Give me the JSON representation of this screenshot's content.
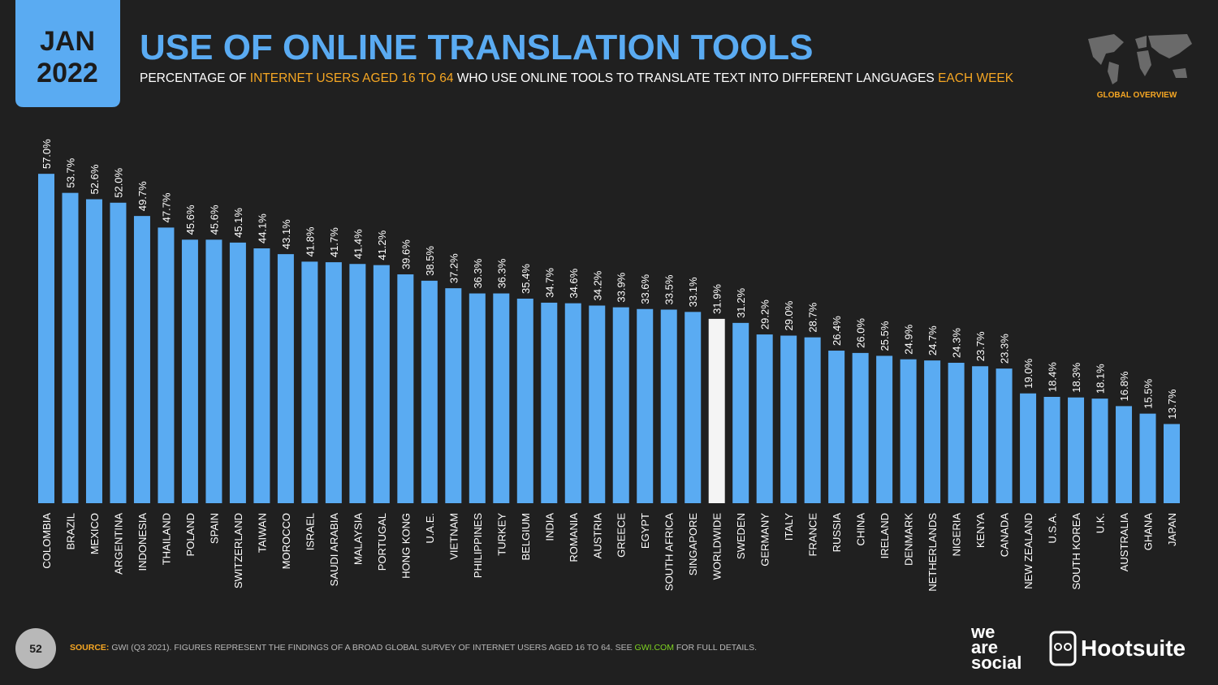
{
  "header": {
    "month": "JAN",
    "year": "2022",
    "badge": "GLOBAL OVERVIEW",
    "page_number": "52"
  },
  "chart_data": {
    "type": "bar",
    "title": "USE OF ONLINE TRANSLATION TOOLS",
    "subtitle": [
      "PERCENTAGE OF",
      "INTERNET USERS AGED 16 TO 64",
      "WHO USE ONLINE TOOLS TO TRANSLATE TEXT INTO DIFFERENT LANGUAGES",
      "EACH WEEK"
    ],
    "categories": [
      "COLOMBIA",
      "BRAZIL",
      "MEXICO",
      "ARGENTINA",
      "INDONESIA",
      "THAILAND",
      "POLAND",
      "SPAIN",
      "SWITZERLAND",
      "TAIWAN",
      "MOROCCO",
      "ISRAEL",
      "SAUDI ARABIA",
      "MALAYSIA",
      "PORTUGAL",
      "HONG KONG",
      "U.A.E.",
      "VIETNAM",
      "PHILIPPINES",
      "TURKEY",
      "BELGIUM",
      "INDIA",
      "ROMANIA",
      "AUSTRIA",
      "GREECE",
      "EGYPT",
      "SOUTH AFRICA",
      "SINGAPORE",
      "WORLDWIDE",
      "SWEDEN",
      "GERMANY",
      "ITALY",
      "FRANCE",
      "RUSSIA",
      "CHINA",
      "IRELAND",
      "DENMARK",
      "NETHERLANDS",
      "NIGERIA",
      "KENYA",
      "CANADA",
      "NEW ZEALAND",
      "U.S.A.",
      "SOUTH KOREA",
      "U.K.",
      "AUSTRALIA",
      "GHANA",
      "JAPAN"
    ],
    "values": [
      57.0,
      53.7,
      52.6,
      52.0,
      49.7,
      47.7,
      45.6,
      45.6,
      45.1,
      44.1,
      43.1,
      41.8,
      41.7,
      41.4,
      41.2,
      39.6,
      38.5,
      37.2,
      36.3,
      36.3,
      35.4,
      34.7,
      34.6,
      34.2,
      33.9,
      33.6,
      33.5,
      33.1,
      31.9,
      31.2,
      29.2,
      29.0,
      28.7,
      26.4,
      26.0,
      25.5,
      24.9,
      24.7,
      24.3,
      23.7,
      23.3,
      19.0,
      18.4,
      18.3,
      18.1,
      16.8,
      15.5,
      13.7
    ],
    "value_labels": [
      "57.0%",
      "53.7%",
      "52.6%",
      "52.0%",
      "49.7%",
      "47.7%",
      "45.6%",
      "45.6%",
      "45.1%",
      "44.1%",
      "43.1%",
      "41.8%",
      "41.7%",
      "41.4%",
      "41.2%",
      "39.6%",
      "38.5%",
      "37.2%",
      "36.3%",
      "36.3%",
      "35.4%",
      "34.7%",
      "34.6%",
      "34.2%",
      "33.9%",
      "33.6%",
      "33.5%",
      "33.1%",
      "31.9%",
      "31.2%",
      "29.2%",
      "29.0%",
      "28.7%",
      "26.4%",
      "26.0%",
      "25.5%",
      "24.9%",
      "24.7%",
      "24.3%",
      "23.7%",
      "23.3%",
      "19.0%",
      "18.4%",
      "18.3%",
      "18.1%",
      "16.8%",
      "15.5%",
      "13.7%"
    ],
    "color": "#5aabf2",
    "highlight_index": 28,
    "highlight_color": "#f4f4f4"
  },
  "footer": {
    "source": [
      "SOURCE:",
      "GWI (Q3 2021). FIGURES REPRESENT THE FINDINGS OF A BROAD GLOBAL SURVEY OF INTERNET USERS AGED 16 TO 64. SEE",
      "GWI.COM",
      "FOR FULL DETAILS."
    ],
    "logo_we_are_social": [
      "we",
      "are",
      "social"
    ],
    "logo_hootsuite": "Hootsuite"
  }
}
